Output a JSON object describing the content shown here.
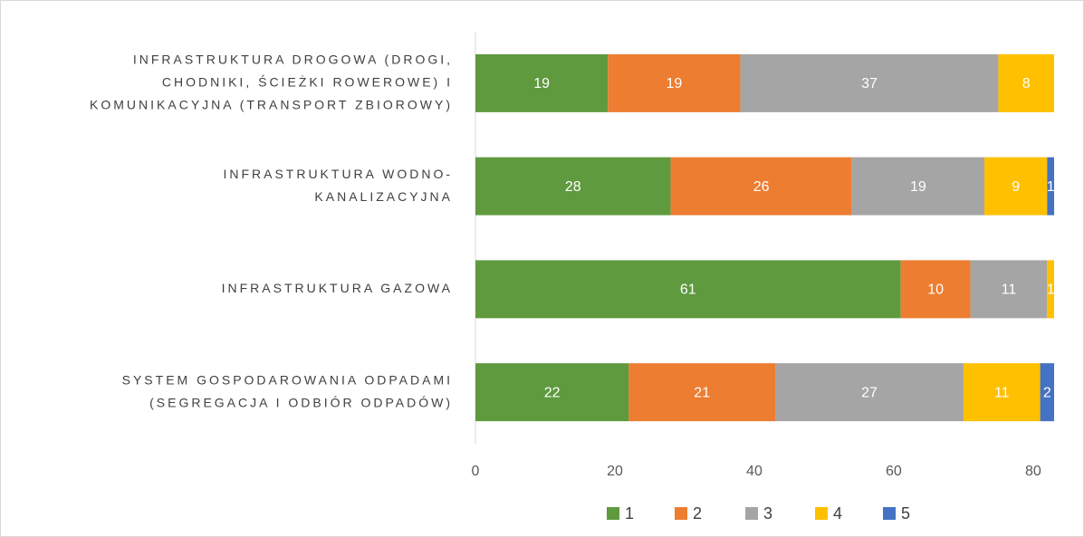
{
  "chart_data": {
    "type": "stacked-barh",
    "categories": [
      [
        "INFRASTRUKTURA DROGOWA (DROGI,",
        "CHODNIKI, ŚCIEŻKI ROWEROWE) I",
        "KOMUNIKACYJNA (TRANSPORT ZBIOROWY)"
      ],
      [
        "INFRASTRUKTURA WODNO-",
        "KANALIZACYJNA"
      ],
      [
        "INFRASTRUKTURA GAZOWA"
      ],
      [
        "SYSTEM GOSPODAROWANIA ODPADAMI",
        "(SEGREGACJA I ODBIÓR ODPADÓW)"
      ]
    ],
    "series": [
      {
        "name": "1",
        "color": "#5f9a3f",
        "values": [
          19,
          28,
          61,
          22
        ]
      },
      {
        "name": "2",
        "color": "#ed7d31",
        "values": [
          19,
          26,
          10,
          21
        ]
      },
      {
        "name": "3",
        "color": "#a5a5a5",
        "values": [
          37,
          19,
          11,
          27
        ]
      },
      {
        "name": "4",
        "color": "#ffc000",
        "values": [
          8,
          9,
          1,
          11
        ]
      },
      {
        "name": "5",
        "color": "#4472c4",
        "values": [
          null,
          1,
          null,
          2
        ]
      }
    ],
    "xlim": [
      0,
      83
    ],
    "xticks": [
      0,
      20,
      40,
      60,
      80
    ],
    "legend": "bottom"
  }
}
